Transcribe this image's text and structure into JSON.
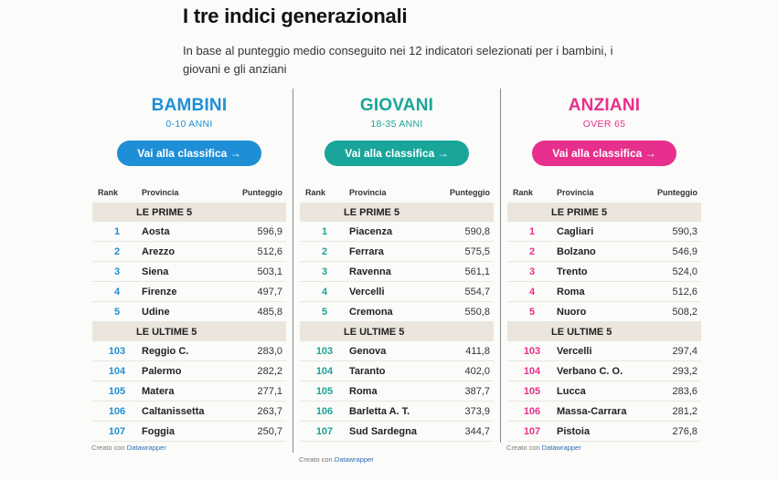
{
  "header": {
    "title": "I tre indici generazionali",
    "intro": "In base al punteggio medio conseguito nei 12 indicatori selezionati per i bambini, i giovani e gli anziani"
  },
  "table_headers": {
    "rank": "Rank",
    "province": "Provincia",
    "score": "Punteggio"
  },
  "group_labels": {
    "top": "LE PRIME 5",
    "bottom": "LE ULTIME 5"
  },
  "credit": {
    "prefix": "Creato con",
    "link": "Datawrapper"
  },
  "panels": [
    {
      "name": "BAMBINI",
      "subtitle": "0-10 ANNI",
      "button": "Vai alla classifica →",
      "color": "#1e8fd6",
      "top": [
        {
          "rank": "1",
          "province": "Aosta",
          "score": "596,9"
        },
        {
          "rank": "2",
          "province": "Arezzo",
          "score": "512,6"
        },
        {
          "rank": "3",
          "province": "Siena",
          "score": "503,1"
        },
        {
          "rank": "4",
          "province": "Firenze",
          "score": "497,7"
        },
        {
          "rank": "5",
          "province": "Udine",
          "score": "485,8"
        }
      ],
      "bottom": [
        {
          "rank": "103",
          "province": "Reggio C.",
          "score": "283,0"
        },
        {
          "rank": "104",
          "province": "Palermo",
          "score": "282,2"
        },
        {
          "rank": "105",
          "province": "Matera",
          "score": "277,1"
        },
        {
          "rank": "106",
          "province": "Caltanissetta",
          "score": "263,7"
        },
        {
          "rank": "107",
          "province": "Foggia",
          "score": "250,7"
        }
      ]
    },
    {
      "name": "GIOVANI",
      "subtitle": "18-35 ANNI",
      "button": "Vai alla classifica →",
      "color": "#1aa59a",
      "top": [
        {
          "rank": "1",
          "province": "Piacenza",
          "score": "590,8"
        },
        {
          "rank": "2",
          "province": "Ferrara",
          "score": "575,5"
        },
        {
          "rank": "3",
          "province": "Ravenna",
          "score": "561,1"
        },
        {
          "rank": "4",
          "province": "Vercelli",
          "score": "554,7"
        },
        {
          "rank": "5",
          "province": "Cremona",
          "score": "550,8"
        }
      ],
      "bottom": [
        {
          "rank": "103",
          "province": "Genova",
          "score": "411,8"
        },
        {
          "rank": "104",
          "province": "Taranto",
          "score": "402,0"
        },
        {
          "rank": "105",
          "province": "Roma",
          "score": "387,7"
        },
        {
          "rank": "106",
          "province": "Barletta A. T.",
          "score": "373,9"
        },
        {
          "rank": "107",
          "province": "Sud Sardegna",
          "score": "344,7"
        }
      ]
    },
    {
      "name": "ANZIANI",
      "subtitle": "OVER 65",
      "button": "Vai alla classifica →",
      "color": "#e7308d",
      "top": [
        {
          "rank": "1",
          "province": "Cagliari",
          "score": "590,3"
        },
        {
          "rank": "2",
          "province": "Bolzano",
          "score": "546,9"
        },
        {
          "rank": "3",
          "province": "Trento",
          "score": "524,0"
        },
        {
          "rank": "4",
          "province": "Roma",
          "score": "512,6"
        },
        {
          "rank": "5",
          "province": "Nuoro",
          "score": "508,2"
        }
      ],
      "bottom": [
        {
          "rank": "103",
          "province": "Vercelli",
          "score": "297,4"
        },
        {
          "rank": "104",
          "province": "Verbano C. O.",
          "score": "293,2"
        },
        {
          "rank": "105",
          "province": "Lucca",
          "score": "283,6"
        },
        {
          "rank": "106",
          "province": "Massa-Carrara",
          "score": "281,2"
        },
        {
          "rank": "107",
          "province": "Pistoia",
          "score": "276,8"
        }
      ]
    }
  ]
}
